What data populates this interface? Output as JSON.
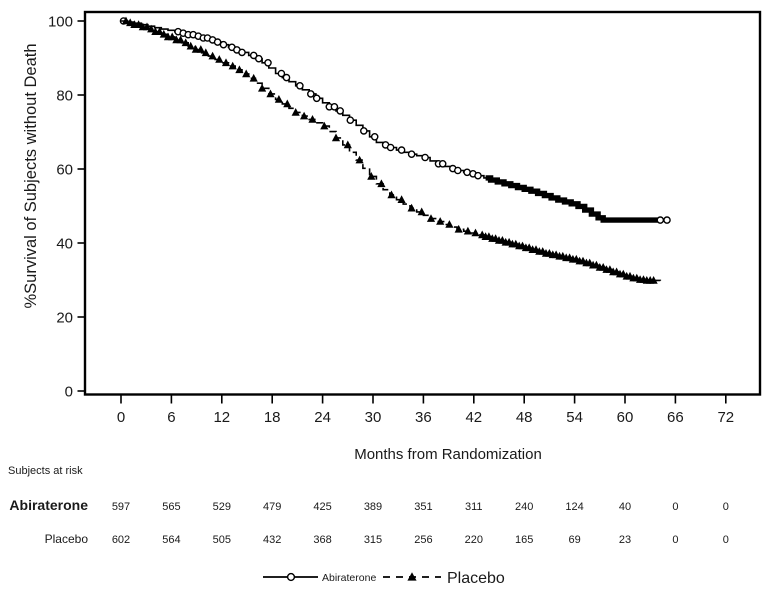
{
  "chart_data": {
    "type": "line",
    "subtype": "kaplan-meier-survival",
    "title": "",
    "xlabel": "Months from Randomization",
    "ylabel": "%Survival of Subjects without Death",
    "xticks": [
      0,
      6,
      12,
      18,
      24,
      30,
      36,
      42,
      48,
      54,
      60,
      66,
      72
    ],
    "yticks": [
      0,
      20,
      40,
      60,
      80,
      100
    ],
    "xlim": [
      0,
      76
    ],
    "ylim": [
      0,
      102
    ],
    "grid": false,
    "legend_position": "bottom-center",
    "colors": {
      "foreground": "#000000",
      "background": "#ffffff"
    },
    "series": [
      {
        "name": "Abiraterone",
        "line_style": "solid",
        "marker": "open-circle",
        "points": [
          [
            0,
            100
          ],
          [
            0.8,
            99.7
          ],
          [
            1.6,
            99.4
          ],
          [
            2.4,
            99
          ],
          [
            3.2,
            98.6
          ],
          [
            4,
            98.2
          ],
          [
            4.8,
            97.8
          ],
          [
            5.6,
            97.5
          ],
          [
            6.4,
            97.1
          ],
          [
            7.2,
            96.7
          ],
          [
            8,
            96.3
          ],
          [
            8.8,
            95.9
          ],
          [
            9.6,
            95.4
          ],
          [
            10.4,
            94.9
          ],
          [
            11.2,
            94.3
          ],
          [
            12,
            93.6
          ],
          [
            12.8,
            92.9
          ],
          [
            13.6,
            92.2
          ],
          [
            14.4,
            91.5
          ],
          [
            15.2,
            90.7
          ],
          [
            16,
            89.8
          ],
          [
            16.8,
            88.7
          ],
          [
            17.6,
            87.3
          ],
          [
            18.4,
            85.8
          ],
          [
            19.2,
            84.7
          ],
          [
            20,
            83.6
          ],
          [
            20.8,
            82.5
          ],
          [
            21.6,
            81.4
          ],
          [
            22.4,
            80.3
          ],
          [
            23.2,
            79.1
          ],
          [
            24,
            77.9
          ],
          [
            24.8,
            76.8
          ],
          [
            25.6,
            75.7
          ],
          [
            26.4,
            74.5
          ],
          [
            27.2,
            73.2
          ],
          [
            28,
            71.8
          ],
          [
            28.8,
            70.3
          ],
          [
            29.6,
            68.7
          ],
          [
            30.4,
            67.2
          ],
          [
            31.2,
            66.5
          ],
          [
            32,
            65.8
          ],
          [
            32.8,
            65.1
          ],
          [
            33.6,
            64.5
          ],
          [
            34.4,
            64
          ],
          [
            35.2,
            63.6
          ],
          [
            36,
            63.1
          ],
          [
            36.8,
            62.2
          ],
          [
            37.6,
            61.4
          ],
          [
            38.4,
            60.7
          ],
          [
            39.2,
            60.1
          ],
          [
            40,
            59.6
          ],
          [
            40.8,
            59.1
          ],
          [
            41.6,
            58.7
          ],
          [
            42.4,
            58.2
          ],
          [
            43.2,
            57.6
          ],
          [
            44,
            57
          ],
          [
            44.8,
            56.5
          ],
          [
            45.6,
            56
          ],
          [
            46.4,
            55.5
          ],
          [
            47.2,
            55
          ],
          [
            48,
            54.5
          ],
          [
            48.8,
            54
          ],
          [
            49.6,
            53.4
          ],
          [
            50.4,
            52.8
          ],
          [
            51.2,
            52.2
          ],
          [
            52,
            51.6
          ],
          [
            52.8,
            51.1
          ],
          [
            53.6,
            50.6
          ],
          [
            54.4,
            49.9
          ],
          [
            55.2,
            48.9
          ],
          [
            56,
            47.8
          ],
          [
            56.8,
            46.8
          ],
          [
            57.4,
            46.2
          ],
          [
            65.1,
            46.2
          ]
        ],
        "censor_marks": [
          0.3,
          6.8,
          7.4,
          8.0,
          8.6,
          9.2,
          9.8,
          10.3,
          10.9,
          11.5,
          12.2,
          13.2,
          13.8,
          14.4,
          15.8,
          16.4,
          17.5,
          19.1,
          19.7,
          21.3,
          22.6,
          23.3,
          24.8,
          25.4,
          26.1,
          27.3,
          28.9,
          30.2,
          31.5,
          32.1,
          33.4,
          34.6,
          36.2,
          37.8,
          38.3,
          39.5,
          40.1,
          41.2,
          41.9,
          42.5,
          64.2,
          65.0
        ],
        "dense_censor_band": [
          43.4,
          63.9
        ]
      },
      {
        "name": "Placebo",
        "line_style": "dashed",
        "marker": "filled-triangle",
        "points": [
          [
            0,
            100
          ],
          [
            0.8,
            99.5
          ],
          [
            1.6,
            99
          ],
          [
            2.4,
            98.4
          ],
          [
            3.2,
            97.8
          ],
          [
            4,
            97.1
          ],
          [
            4.8,
            96.4
          ],
          [
            5.6,
            95.7
          ],
          [
            6.4,
            94.9
          ],
          [
            7.2,
            94.1
          ],
          [
            8,
            93.2
          ],
          [
            8.8,
            92.3
          ],
          [
            9.6,
            91.4
          ],
          [
            10.4,
            90.5
          ],
          [
            11.2,
            89.6
          ],
          [
            12,
            88.7
          ],
          [
            12.8,
            87.8
          ],
          [
            13.6,
            86.8
          ],
          [
            14.4,
            85.7
          ],
          [
            15.2,
            84.5
          ],
          [
            16,
            83.2
          ],
          [
            16.8,
            81.8
          ],
          [
            17.6,
            80.3
          ],
          [
            18.4,
            78.8
          ],
          [
            19.2,
            77.6
          ],
          [
            20,
            76.4
          ],
          [
            20.8,
            75.3
          ],
          [
            21.6,
            74.3
          ],
          [
            22.4,
            73.4
          ],
          [
            23.2,
            72.5
          ],
          [
            24,
            71.6
          ],
          [
            24.8,
            70.1
          ],
          [
            25.6,
            68.4
          ],
          [
            26.4,
            66.5
          ],
          [
            27.2,
            64.5
          ],
          [
            28,
            62.4
          ],
          [
            28.8,
            60.2
          ],
          [
            29.6,
            58
          ],
          [
            30.4,
            56
          ],
          [
            31.2,
            54.4
          ],
          [
            32,
            53
          ],
          [
            32.8,
            51.7
          ],
          [
            33.6,
            50.5
          ],
          [
            34.4,
            49.4
          ],
          [
            35.2,
            48.4
          ],
          [
            36,
            47.5
          ],
          [
            36.8,
            46.6
          ],
          [
            37.6,
            45.8
          ],
          [
            38.4,
            45
          ],
          [
            39.2,
            44.3
          ],
          [
            40,
            43.7
          ],
          [
            40.8,
            43.2
          ],
          [
            41.6,
            42.7
          ],
          [
            42.4,
            42.2
          ],
          [
            43.2,
            41.7
          ],
          [
            44,
            41.2
          ],
          [
            44.8,
            40.7
          ],
          [
            45.6,
            40.2
          ],
          [
            46.4,
            39.7
          ],
          [
            47.2,
            39.2
          ],
          [
            48,
            38.7
          ],
          [
            48.8,
            38.2
          ],
          [
            49.6,
            37.7
          ],
          [
            50.4,
            37.2
          ],
          [
            51.2,
            36.8
          ],
          [
            52,
            36.4
          ],
          [
            52.8,
            36
          ],
          [
            53.6,
            35.6
          ],
          [
            54.4,
            35.1
          ],
          [
            55.2,
            34.6
          ],
          [
            56,
            34
          ],
          [
            56.8,
            33.4
          ],
          [
            57.6,
            32.8
          ],
          [
            58.4,
            32.2
          ],
          [
            59.2,
            31.6
          ],
          [
            60,
            31
          ],
          [
            60.8,
            30.5
          ],
          [
            61.6,
            30.1
          ],
          [
            62.4,
            29.9
          ],
          [
            64.2,
            29.8
          ]
        ],
        "censor_marks": [
          0.6,
          1.1,
          1.6,
          2.1,
          2.6,
          3.1,
          3.6,
          4.1,
          4.6,
          5.1,
          5.6,
          6.1,
          6.6,
          7.1,
          7.7,
          8.3,
          8.9,
          9.5,
          10.1,
          10.9,
          11.7,
          12.5,
          13.3,
          14.1,
          14.9,
          15.8,
          16.8,
          17.8,
          18.8,
          19.8,
          20.8,
          21.8,
          22.8,
          24.2,
          25.6,
          27.0,
          28.4,
          29.8,
          31.0,
          32.2,
          33.4,
          34.6,
          35.8,
          36.9,
          38.0,
          39.1,
          40.2,
          41.3,
          42.2,
          {
            "from": 43.0,
            "to": 63.4,
            "step": 0.4
          }
        ],
        "dense_censor_band": null
      }
    ],
    "risk_table": {
      "title": "Subjects at risk",
      "months": [
        0,
        6,
        12,
        18,
        24,
        30,
        36,
        42,
        48,
        54,
        60,
        66,
        72
      ],
      "rows": [
        {
          "label": "Abiraterone",
          "emphasis": "bold",
          "counts": [
            597,
            565,
            529,
            479,
            425,
            389,
            351,
            311,
            240,
            124,
            40,
            0,
            0
          ]
        },
        {
          "label": "Placebo",
          "emphasis": "normal",
          "counts": [
            602,
            564,
            505,
            432,
            368,
            315,
            256,
            220,
            165,
            69,
            23,
            0,
            0
          ]
        }
      ]
    },
    "legend": [
      {
        "label": "Abiraterone",
        "line_style": "solid",
        "marker": "open-circle"
      },
      {
        "label": "Placebo",
        "line_style": "dashed",
        "marker": "filled-triangle"
      }
    ]
  }
}
